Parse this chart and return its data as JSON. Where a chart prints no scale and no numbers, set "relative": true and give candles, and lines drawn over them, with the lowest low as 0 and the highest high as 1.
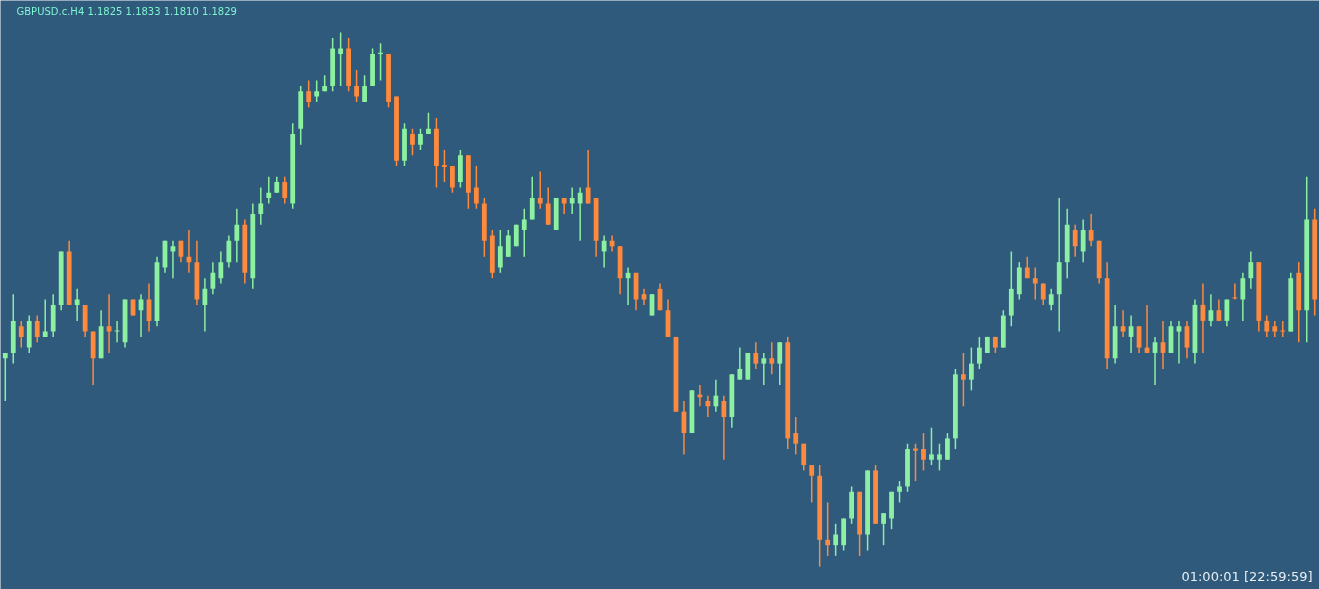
{
  "chart_data": {
    "type": "candlestick",
    "title": "GBPUSD.c.H4  1.1825 1.1833 1.1810 1.1829",
    "relative": true,
    "annotations": [
      "01:00:01 [22:59:59]"
    ],
    "categories": [
      null,
      null,
      null,
      null,
      null,
      null,
      null,
      null,
      null,
      null,
      null,
      null,
      null,
      null,
      null,
      null,
      null,
      null,
      null,
      null,
      null,
      null,
      null,
      null,
      null,
      null,
      null,
      null,
      null,
      null,
      null,
      null,
      null,
      null,
      null,
      null,
      null,
      null,
      null,
      null,
      null,
      null,
      null,
      null,
      null,
      null,
      null,
      null,
      null,
      null,
      null,
      null,
      null,
      null,
      null,
      null,
      null,
      null,
      null,
      null,
      null,
      null,
      null,
      null,
      null,
      null,
      null,
      null,
      null,
      null,
      null,
      null,
      null,
      null,
      null,
      null,
      null,
      null,
      null,
      null,
      null,
      null,
      null,
      null,
      null,
      null,
      null,
      null,
      null,
      null,
      null,
      null,
      null,
      null,
      null,
      null,
      null,
      null,
      null,
      null,
      null,
      null,
      null,
      null,
      null,
      null,
      null,
      null,
      null,
      null,
      null,
      null,
      null,
      null,
      null,
      null,
      null,
      null,
      null,
      null,
      null,
      null,
      null,
      null,
      null,
      null,
      null,
      null,
      null,
      null,
      null,
      null,
      null,
      null,
      null,
      null,
      null,
      null,
      null,
      null,
      null,
      null,
      null,
      null,
      null,
      null,
      null,
      null,
      null,
      null,
      null,
      null,
      null,
      null,
      null,
      null,
      null,
      null,
      null,
      null,
      null,
      null,
      null,
      null,
      null
    ],
    "ohlc": [
      [
        0.39,
        0.4,
        0.31,
        0.4
      ],
      [
        0.4,
        0.51,
        0.38,
        0.46
      ],
      [
        0.45,
        0.46,
        0.41,
        0.43
      ],
      [
        0.41,
        0.47,
        0.4,
        0.46
      ],
      [
        0.46,
        0.47,
        0.42,
        0.43
      ],
      [
        0.43,
        0.5,
        0.43,
        0.44
      ],
      [
        0.44,
        0.51,
        0.43,
        0.49
      ],
      [
        0.49,
        0.59,
        0.48,
        0.59
      ],
      [
        0.59,
        0.61,
        0.49,
        0.49
      ],
      [
        0.49,
        0.52,
        0.46,
        0.5
      ],
      [
        0.49,
        0.49,
        0.43,
        0.44
      ],
      [
        0.44,
        0.44,
        0.34,
        0.39
      ],
      [
        0.39,
        0.48,
        0.39,
        0.45
      ],
      [
        0.45,
        0.51,
        0.4,
        0.44
      ],
      [
        0.44,
        0.46,
        0.42,
        0.442
      ],
      [
        0.42,
        0.5,
        0.41,
        0.5
      ],
      [
        0.5,
        0.5,
        0.47,
        0.47
      ],
      [
        0.48,
        0.51,
        0.43,
        0.5
      ],
      [
        0.5,
        0.53,
        0.44,
        0.46
      ],
      [
        0.46,
        0.58,
        0.45,
        0.57
      ],
      [
        0.56,
        0.61,
        0.55,
        0.61
      ],
      [
        0.59,
        0.61,
        0.54,
        0.6
      ],
      [
        0.61,
        0.61,
        0.57,
        0.58
      ],
      [
        0.58,
        0.63,
        0.55,
        0.57
      ],
      [
        0.57,
        0.61,
        0.49,
        0.5
      ],
      [
        0.49,
        0.54,
        0.44,
        0.52
      ],
      [
        0.52,
        0.57,
        0.51,
        0.55
      ],
      [
        0.54,
        0.59,
        0.53,
        0.57
      ],
      [
        0.57,
        0.62,
        0.56,
        0.61
      ],
      [
        0.61,
        0.67,
        0.57,
        0.64
      ],
      [
        0.64,
        0.65,
        0.53,
        0.55
      ],
      [
        0.54,
        0.68,
        0.52,
        0.66
      ],
      [
        0.66,
        0.71,
        0.64,
        0.68
      ],
      [
        0.69,
        0.73,
        0.68,
        0.7
      ],
      [
        0.7,
        0.73,
        0.7,
        0.72
      ],
      [
        0.72,
        0.73,
        0.68,
        0.69
      ],
      [
        0.68,
        0.83,
        0.67,
        0.81
      ],
      [
        0.82,
        0.9,
        0.79,
        0.89
      ],
      [
        0.89,
        0.91,
        0.86,
        0.87
      ],
      [
        0.88,
        0.91,
        0.87,
        0.89
      ],
      [
        0.89,
        0.92,
        0.89,
        0.9
      ],
      [
        0.9,
        0.99,
        0.89,
        0.97
      ],
      [
        0.96,
        1.0,
        0.9,
        0.97
      ],
      [
        0.97,
        0.99,
        0.89,
        0.9
      ],
      [
        0.9,
        0.93,
        0.87,
        0.88
      ],
      [
        0.87,
        0.92,
        0.87,
        0.9
      ],
      [
        0.9,
        0.97,
        0.9,
        0.96
      ],
      [
        0.96,
        0.98,
        0.91,
        0.962
      ],
      [
        0.96,
        0.96,
        0.86,
        0.87
      ],
      [
        0.88,
        0.88,
        0.75,
        0.76
      ],
      [
        0.76,
        0.83,
        0.75,
        0.82
      ],
      [
        0.81,
        0.82,
        0.77,
        0.79
      ],
      [
        0.79,
        0.82,
        0.78,
        0.81
      ],
      [
        0.81,
        0.85,
        0.81,
        0.82
      ],
      [
        0.82,
        0.84,
        0.71,
        0.75
      ],
      [
        0.752,
        0.78,
        0.72,
        0.748
      ],
      [
        0.75,
        0.75,
        0.7,
        0.71
      ],
      [
        0.72,
        0.78,
        0.71,
        0.77
      ],
      [
        0.77,
        0.77,
        0.67,
        0.7
      ],
      [
        0.71,
        0.75,
        0.67,
        0.68
      ],
      [
        0.68,
        0.69,
        0.58,
        0.61
      ],
      [
        0.62,
        0.63,
        0.54,
        0.55
      ],
      [
        0.56,
        0.63,
        0.55,
        0.6
      ],
      [
        0.58,
        0.63,
        0.58,
        0.62
      ],
      [
        0.6,
        0.64,
        0.6,
        0.64
      ],
      [
        0.63,
        0.67,
        0.58,
        0.65
      ],
      [
        0.65,
        0.73,
        0.65,
        0.69
      ],
      [
        0.69,
        0.74,
        0.67,
        0.68
      ],
      [
        0.68,
        0.71,
        0.64,
        0.64
      ],
      [
        0.63,
        0.69,
        0.63,
        0.69
      ],
      [
        0.69,
        0.69,
        0.66,
        0.68
      ],
      [
        0.68,
        0.71,
        0.66,
        0.69
      ],
      [
        0.68,
        0.71,
        0.61,
        0.7
      ],
      [
        0.71,
        0.78,
        0.68,
        0.68
      ],
      [
        0.69,
        0.69,
        0.58,
        0.61
      ],
      [
        0.59,
        0.62,
        0.56,
        0.61
      ],
      [
        0.61,
        0.62,
        0.59,
        0.6
      ],
      [
        0.6,
        0.6,
        0.51,
        0.54
      ],
      [
        0.54,
        0.56,
        0.49,
        0.55
      ],
      [
        0.55,
        0.55,
        0.48,
        0.5
      ],
      [
        0.51,
        0.52,
        0.49,
        0.5
      ],
      [
        0.47,
        0.51,
        0.47,
        0.51
      ],
      [
        0.52,
        0.53,
        0.48,
        0.48
      ],
      [
        0.48,
        0.5,
        0.43,
        0.43
      ],
      [
        0.43,
        0.43,
        0.29,
        0.29
      ],
      [
        0.29,
        0.31,
        0.21,
        0.25
      ],
      [
        0.25,
        0.33,
        0.25,
        0.33
      ],
      [
        0.322,
        0.34,
        0.3,
        0.317
      ],
      [
        0.31,
        0.32,
        0.28,
        0.3
      ],
      [
        0.3,
        0.35,
        0.29,
        0.32
      ],
      [
        0.31,
        0.32,
        0.2,
        0.28
      ],
      [
        0.28,
        0.36,
        0.26,
        0.36
      ],
      [
        0.35,
        0.41,
        0.35,
        0.37
      ],
      [
        0.35,
        0.4,
        0.35,
        0.4
      ],
      [
        0.4,
        0.42,
        0.37,
        0.38
      ],
      [
        0.38,
        0.4,
        0.34,
        0.39
      ],
      [
        0.39,
        0.42,
        0.36,
        0.38
      ],
      [
        0.38,
        0.42,
        0.34,
        0.42
      ],
      [
        0.42,
        0.43,
        0.22,
        0.24
      ],
      [
        0.25,
        0.28,
        0.21,
        0.23
      ],
      [
        0.23,
        0.23,
        0.18,
        0.19
      ],
      [
        0.19,
        0.19,
        0.12,
        0.17
      ],
      [
        0.17,
        0.19,
        0.0,
        0.05
      ],
      [
        0.05,
        0.12,
        0.02,
        0.04
      ],
      [
        0.04,
        0.08,
        0.02,
        0.06
      ],
      [
        0.04,
        0.09,
        0.03,
        0.09
      ],
      [
        0.09,
        0.15,
        0.08,
        0.14
      ],
      [
        0.14,
        0.14,
        0.02,
        0.06
      ],
      [
        0.06,
        0.18,
        0.03,
        0.18
      ],
      [
        0.18,
        0.19,
        0.08,
        0.08
      ],
      [
        0.08,
        0.1,
        0.04,
        0.1
      ],
      [
        0.09,
        0.14,
        0.07,
        0.14
      ],
      [
        0.14,
        0.16,
        0.12,
        0.15
      ],
      [
        0.15,
        0.23,
        0.14,
        0.22
      ],
      [
        0.221,
        0.23,
        0.16,
        0.217
      ],
      [
        0.22,
        0.25,
        0.18,
        0.2
      ],
      [
        0.2,
        0.26,
        0.19,
        0.21
      ],
      [
        0.2,
        0.23,
        0.18,
        0.21
      ],
      [
        0.2,
        0.25,
        0.2,
        0.24
      ],
      [
        0.24,
        0.37,
        0.22,
        0.36
      ],
      [
        0.36,
        0.4,
        0.3,
        0.35
      ],
      [
        0.35,
        0.41,
        0.33,
        0.38
      ],
      [
        0.38,
        0.43,
        0.37,
        0.41
      ],
      [
        0.4,
        0.43,
        0.4,
        0.43
      ],
      [
        0.43,
        0.43,
        0.4,
        0.41
      ],
      [
        0.41,
        0.48,
        0.41,
        0.47
      ],
      [
        0.47,
        0.59,
        0.45,
        0.52
      ],
      [
        0.51,
        0.57,
        0.5,
        0.56
      ],
      [
        0.56,
        0.58,
        0.54,
        0.54
      ],
      [
        0.54,
        0.56,
        0.5,
        0.53
      ],
      [
        0.53,
        0.53,
        0.49,
        0.5
      ],
      [
        0.49,
        0.52,
        0.48,
        0.51
      ],
      [
        0.51,
        0.69,
        0.44,
        0.57
      ],
      [
        0.57,
        0.67,
        0.54,
        0.64
      ],
      [
        0.63,
        0.64,
        0.58,
        0.6
      ],
      [
        0.59,
        0.65,
        0.57,
        0.63
      ],
      [
        0.63,
        0.66,
        0.6,
        0.61
      ],
      [
        0.61,
        0.61,
        0.53,
        0.54
      ],
      [
        0.54,
        0.57,
        0.37,
        0.39
      ],
      [
        0.39,
        0.49,
        0.38,
        0.45
      ],
      [
        0.45,
        0.48,
        0.43,
        0.44
      ],
      [
        0.43,
        0.47,
        0.4,
        0.45
      ],
      [
        0.45,
        0.45,
        0.4,
        0.41
      ],
      [
        0.41,
        0.49,
        0.4,
        0.4
      ],
      [
        0.4,
        0.43,
        0.34,
        0.42
      ],
      [
        0.42,
        0.46,
        0.37,
        0.4
      ],
      [
        0.4,
        0.46,
        0.4,
        0.45
      ],
      [
        0.44,
        0.46,
        0.38,
        0.45
      ],
      [
        0.45,
        0.46,
        0.39,
        0.41
      ],
      [
        0.4,
        0.5,
        0.38,
        0.49
      ],
      [
        0.49,
        0.53,
        0.4,
        0.46
      ],
      [
        0.46,
        0.51,
        0.45,
        0.48
      ],
      [
        0.48,
        0.5,
        0.46,
        0.46
      ],
      [
        0.46,
        0.5,
        0.45,
        0.5
      ],
      [
        0.504,
        0.53,
        0.5,
        0.502
      ],
      [
        0.5,
        0.55,
        0.46,
        0.54
      ],
      [
        0.54,
        0.59,
        0.52,
        0.57
      ],
      [
        0.57,
        0.57,
        0.44,
        0.46
      ],
      [
        0.46,
        0.47,
        0.43,
        0.44
      ],
      [
        0.45,
        0.46,
        0.43,
        0.44
      ],
      [
        0.442,
        0.46,
        0.43,
        0.44
      ],
      [
        0.44,
        0.55,
        0.44,
        0.54
      ],
      [
        0.55,
        0.57,
        0.42,
        0.48
      ],
      [
        0.48,
        0.73,
        0.42,
        0.65
      ],
      [
        0.65,
        0.67,
        0.47,
        0.5
      ]
    ],
    "colors": [
      "#8cf0a0",
      "#8cf0a0",
      "#ff8a3d",
      "#8cf0a0",
      "#ff8a3d",
      "#8cf0a0",
      "#8cf0a0",
      "#8cf0a0",
      "#ff8a3d",
      "#8cf0a0",
      "#ff8a3d",
      "#ff8a3d",
      "#8cf0a0",
      "#ff8a3d",
      "#8cf0a0",
      "#8cf0a0",
      "#ff8a3d",
      "#8cf0a0",
      "#ff8a3d",
      "#8cf0a0",
      "#8cf0a0",
      "#8cf0a0",
      "#ff8a3d",
      "#ff8a3d",
      "#ff8a3d",
      "#8cf0a0",
      "#8cf0a0",
      "#8cf0a0",
      "#8cf0a0",
      "#8cf0a0",
      "#ff8a3d",
      "#8cf0a0",
      "#8cf0a0",
      "#8cf0a0",
      "#8cf0a0",
      "#ff8a3d",
      "#8cf0a0",
      "#8cf0a0",
      "#ff8a3d",
      "#8cf0a0",
      "#8cf0a0",
      "#8cf0a0",
      "#8cf0a0",
      "#ff8a3d",
      "#ff8a3d",
      "#8cf0a0",
      "#8cf0a0",
      "#8cf0a0",
      "#ff8a3d",
      "#ff8a3d",
      "#8cf0a0",
      "#ff8a3d",
      "#8cf0a0",
      "#8cf0a0",
      "#ff8a3d",
      "#ff8a3d",
      "#ff8a3d",
      "#8cf0a0",
      "#ff8a3d",
      "#ff8a3d",
      "#ff8a3d",
      "#ff8a3d",
      "#8cf0a0",
      "#8cf0a0",
      "#8cf0a0",
      "#8cf0a0",
      "#8cf0a0",
      "#ff8a3d",
      "#ff8a3d",
      "#8cf0a0",
      "#ff8a3d",
      "#8cf0a0",
      "#8cf0a0",
      "#ff8a3d",
      "#ff8a3d",
      "#8cf0a0",
      "#ff8a3d",
      "#ff8a3d",
      "#8cf0a0",
      "#ff8a3d",
      "#ff8a3d",
      "#8cf0a0",
      "#ff8a3d",
      "#ff8a3d",
      "#ff8a3d",
      "#ff8a3d",
      "#8cf0a0",
      "#ff8a3d",
      "#ff8a3d",
      "#8cf0a0",
      "#ff8a3d",
      "#8cf0a0",
      "#8cf0a0",
      "#8cf0a0",
      "#ff8a3d",
      "#8cf0a0",
      "#ff8a3d",
      "#8cf0a0",
      "#ff8a3d",
      "#ff8a3d",
      "#ff8a3d",
      "#ff8a3d",
      "#ff8a3d",
      "#ff8a3d",
      "#8cf0a0",
      "#8cf0a0",
      "#8cf0a0",
      "#ff8a3d",
      "#8cf0a0",
      "#ff8a3d",
      "#8cf0a0",
      "#8cf0a0",
      "#8cf0a0",
      "#8cf0a0",
      "#ff8a3d",
      "#ff8a3d",
      "#8cf0a0",
      "#8cf0a0",
      "#8cf0a0",
      "#8cf0a0",
      "#ff8a3d",
      "#8cf0a0",
      "#8cf0a0",
      "#8cf0a0",
      "#ff8a3d",
      "#8cf0a0",
      "#8cf0a0",
      "#8cf0a0",
      "#ff8a3d",
      "#ff8a3d",
      "#ff8a3d",
      "#8cf0a0",
      "#8cf0a0",
      "#8cf0a0",
      "#ff8a3d",
      "#8cf0a0",
      "#ff8a3d",
      "#ff8a3d",
      "#ff8a3d",
      "#8cf0a0",
      "#ff8a3d",
      "#8cf0a0",
      "#ff8a3d",
      "#ff8a3d",
      "#8cf0a0",
      "#ff8a3d",
      "#8cf0a0",
      "#8cf0a0",
      "#ff8a3d",
      "#8cf0a0",
      "#ff8a3d",
      "#8cf0a0",
      "#ff8a3d",
      "#8cf0a0",
      "#ff8a3d",
      "#8cf0a0",
      "#8cf0a0",
      "#ff8a3d",
      "#ff8a3d",
      "#ff8a3d",
      "#ff8a3d",
      "#8cf0a0",
      "#ff8a3d",
      "#8cf0a0",
      "#ff8a3d"
    ]
  }
}
